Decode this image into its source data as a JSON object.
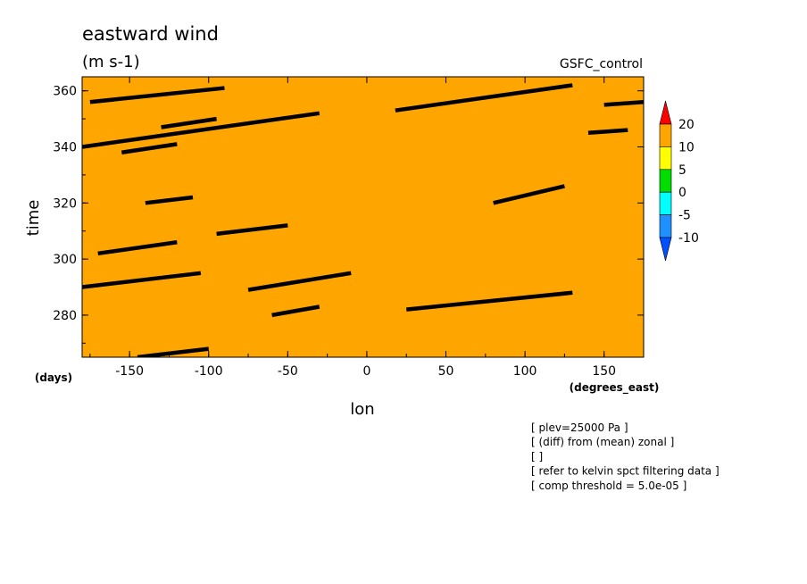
{
  "chart_data": {
    "type": "heatmap",
    "title": "eastward wind",
    "units": "(m s-1)",
    "source": "GSFC_control",
    "xlabel": "lon",
    "ylabel": "time",
    "x_units": "(degrees_east)",
    "y_units": "(days)",
    "xlim": [
      -180,
      175
    ],
    "ylim": [
      265,
      365
    ],
    "x_ticks": [
      "-150",
      "-100",
      "-50",
      "0",
      "50",
      "100",
      "150"
    ],
    "x_tick_values": [
      -150,
      -100,
      -50,
      0,
      50,
      100,
      150
    ],
    "y_ticks": [
      "280",
      "300",
      "320",
      "340",
      "360"
    ],
    "y_tick_values": [
      280,
      300,
      320,
      340,
      360
    ],
    "colorbar": {
      "labels": [
        "20",
        "10",
        "5",
        "0",
        "-5",
        "-10"
      ],
      "colors": [
        "#ff0000",
        "#ffa500",
        "#ffff00",
        "#00dd00",
        "#00ffff",
        "#1e90ff",
        "#0050ff"
      ]
    },
    "contour_segments": [
      [
        [
          -180,
          340
        ],
        [
          -30,
          352
        ]
      ],
      [
        [
          18,
          353
        ],
        [
          130,
          362
        ]
      ],
      [
        [
          -180,
          290
        ],
        [
          -105,
          295
        ]
      ],
      [
        [
          -75,
          289
        ],
        [
          -10,
          295
        ]
      ],
      [
        [
          25,
          282
        ],
        [
          130,
          288
        ]
      ],
      [
        [
          -170,
          302
        ],
        [
          -120,
          306
        ]
      ],
      [
        [
          -95,
          309
        ],
        [
          -50,
          312
        ]
      ],
      [
        [
          -130,
          347
        ],
        [
          -95,
          350
        ]
      ],
      [
        [
          -155,
          338
        ],
        [
          -120,
          341
        ]
      ],
      [
        [
          -140,
          320
        ],
        [
          -110,
          322
        ]
      ],
      [
        [
          80,
          320
        ],
        [
          125,
          326
        ]
      ],
      [
        [
          -175,
          356
        ],
        [
          -90,
          361
        ]
      ],
      [
        [
          150,
          355
        ],
        [
          175,
          356
        ]
      ],
      [
        [
          140,
          345
        ],
        [
          165,
          346
        ]
      ],
      [
        [
          -60,
          280
        ],
        [
          -30,
          283
        ]
      ],
      [
        [
          -145,
          265
        ],
        [
          -100,
          268
        ]
      ]
    ],
    "annotations": [
      "[ plev=25000 Pa ]",
      "[ (diff) from (mean) zonal ]",
      "[  ]",
      "[ refer to kelvin spct filtering data ]",
      "[ comp threshold = 5.0e-05 ]"
    ]
  }
}
